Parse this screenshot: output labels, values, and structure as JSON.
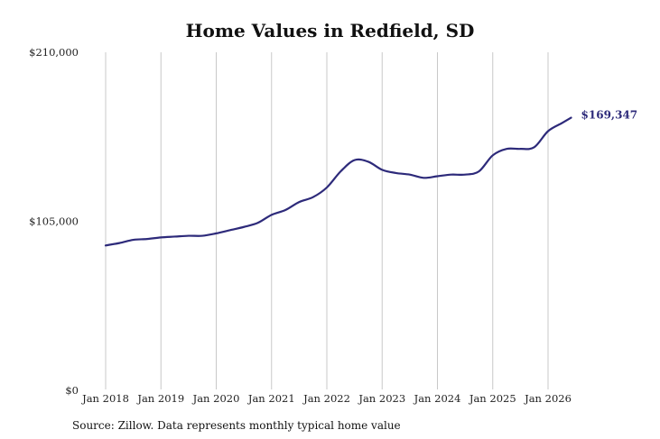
{
  "chart_data": {
    "type": "line",
    "title": "Home Values in Redfield, SD",
    "source_note": "Source: Zillow. Data represents monthly typical home value",
    "xlabel": "",
    "ylabel": "",
    "ylim": [
      0,
      210000
    ],
    "y_ticks": [
      {
        "value": 0,
        "label": "$0"
      },
      {
        "value": 105000,
        "label": "$105,000"
      },
      {
        "value": 210000,
        "label": "$210,000"
      }
    ],
    "x_ticks": [
      {
        "value": "2018-01",
        "label": "Jan 2018"
      },
      {
        "value": "2019-01",
        "label": "Jan 2019"
      },
      {
        "value": "2020-01",
        "label": "Jan 2020"
      },
      {
        "value": "2021-01",
        "label": "Jan 2021"
      },
      {
        "value": "2022-01",
        "label": "Jan 2022"
      },
      {
        "value": "2023-01",
        "label": "Jan 2023"
      },
      {
        "value": "2024-01",
        "label": "Jan 2024"
      },
      {
        "value": "2025-01",
        "label": "Jan 2025"
      },
      {
        "value": "2026-01",
        "label": "Jan 2026"
      }
    ],
    "grid": "vertical",
    "line_color": "#2d2a7a",
    "end_label": "$169,347",
    "series": [
      {
        "x": [
          "2018-01",
          "2018-04",
          "2018-07",
          "2018-10",
          "2019-01",
          "2019-04",
          "2019-07",
          "2019-10",
          "2020-01",
          "2020-04",
          "2020-07",
          "2020-10",
          "2021-01",
          "2021-04",
          "2021-07",
          "2021-10",
          "2022-01",
          "2022-04",
          "2022-07",
          "2022-10",
          "2023-01",
          "2023-04",
          "2023-07",
          "2023-10",
          "2024-01",
          "2024-04",
          "2024-07",
          "2024-10",
          "2025-01",
          "2025-04",
          "2025-07",
          "2025-10",
          "2026-01",
          "2026-04",
          "2026-06"
        ],
        "values": [
          90000,
          91500,
          93500,
          94000,
          95000,
          95500,
          96000,
          96000,
          97500,
          99500,
          101500,
          104000,
          109000,
          112000,
          117000,
          120000,
          126000,
          136000,
          143000,
          142000,
          137000,
          135000,
          134000,
          132000,
          133000,
          134000,
          134000,
          136000,
          146000,
          150000,
          150000,
          151000,
          161000,
          166000,
          169347
        ]
      }
    ]
  }
}
